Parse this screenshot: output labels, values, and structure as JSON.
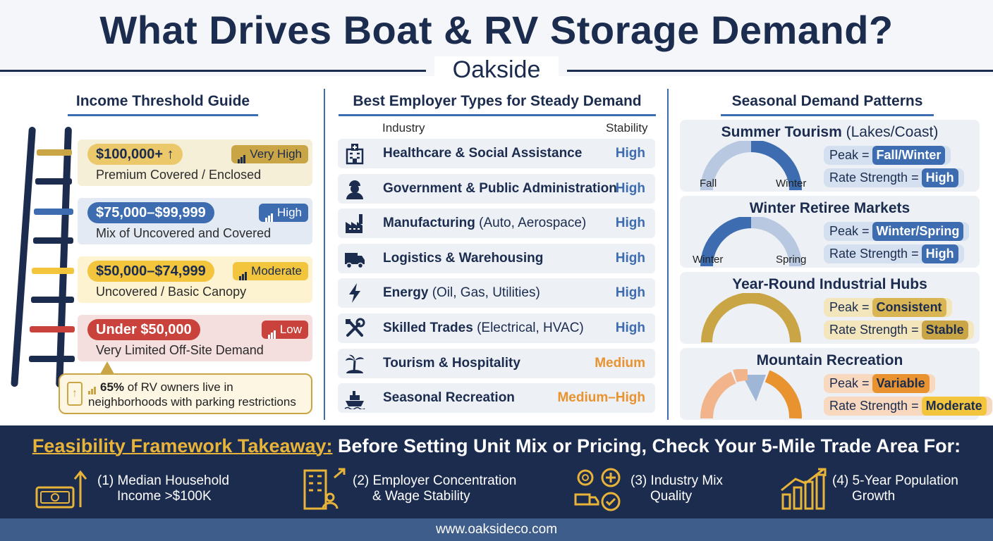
{
  "title": "What Drives Boat & RV Storage Demand?",
  "subtitle": "Oakside",
  "income": {
    "heading": "Income Threshold Guide",
    "tiers": [
      {
        "range": "$100,000+ ↑",
        "level": "Very High",
        "description": "Premium Covered / Enclosed",
        "color": "#c9a545"
      },
      {
        "range": "$75,000–$99,999",
        "level": "High",
        "description": "Mix of Uncovered and Covered",
        "color": "#3d6db0"
      },
      {
        "range": "$50,000–$74,999",
        "level": "Moderate",
        "description": "Uncovered / Basic Canopy",
        "color": "#f2c53d"
      },
      {
        "range": "Under $50,000",
        "level": "Low",
        "description": "Very Limited Off-Site Demand",
        "color": "#c9423b"
      }
    ],
    "callout_bold": "65%",
    "callout_rest": " of RV owners live in",
    "callout_line2": "neighborhoods with parking restrictions"
  },
  "employers": {
    "heading": "Best Employer Types for Steady Demand",
    "col_industry": "Industry",
    "col_stability": "Stability",
    "rows": [
      {
        "icon": "hospital-icon",
        "name": "Healthcare & Social Assistance",
        "detail": "",
        "stability": "High"
      },
      {
        "icon": "worker-icon",
        "name": "Government & Public Administration",
        "detail": "",
        "stability": "High"
      },
      {
        "icon": "factory-icon",
        "name": "Manufacturing",
        "detail": " (Auto, Aerospace)",
        "stability": "High"
      },
      {
        "icon": "truck-icon",
        "name": "Logistics & Warehousing",
        "detail": "",
        "stability": "High"
      },
      {
        "icon": "lightning-icon",
        "name": "Energy",
        "detail": " (Oil, Gas, Utilities)",
        "stability": "High"
      },
      {
        "icon": "tools-icon",
        "name": "Skilled Trades",
        "detail": " (Electrical, HVAC)",
        "stability": "High"
      },
      {
        "icon": "palm-tree-icon",
        "name": "Tourism & Hospitality",
        "detail": "",
        "stability": "Medium"
      },
      {
        "icon": "ship-icon",
        "name": "Seasonal Recreation",
        "detail": "",
        "stability": "Medium–High"
      }
    ],
    "colors": {
      "high": "#3d6db0",
      "medium": "#e8932f"
    }
  },
  "seasonal": {
    "heading": "Seasonal Demand Patterns",
    "cards": [
      {
        "title": "Summer Tourism",
        "title_extra": " (Lakes/Coast)",
        "left_label": "Fall",
        "right_label": "Winter",
        "peak": "Fall/Winter",
        "rate": "High",
        "accent": "#3d6db0"
      },
      {
        "title": "Winter Retiree Markets",
        "title_extra": "",
        "left_label": "Winter",
        "right_label": "Spring",
        "peak": "Winter/Spring",
        "rate": "High",
        "accent": "#3d6db0"
      },
      {
        "title": "Year-Round Industrial Hubs",
        "title_extra": "",
        "left_label": "",
        "right_label": "",
        "peak": "Consistent",
        "rate": "Stable",
        "accent": "#c9a545"
      },
      {
        "title": "Mountain Recreation",
        "title_extra": "",
        "left_label": "",
        "right_label": "",
        "peak": "Variable",
        "rate": "Moderate",
        "accent": "#e8932f"
      }
    ],
    "peak_label": "Peak =",
    "rate_label": "Rate Strength ="
  },
  "takeaway": {
    "title_accent": "Feasibility Framework Takeaway:",
    "title_rest": " Before Setting Unit Mix or Pricing, Check Your 5-Mile Trade Area For:",
    "steps": [
      {
        "icon": "money-growth-icon",
        "line1": "(1) Median Household",
        "line2": "Income >$100K"
      },
      {
        "icon": "employer-building-icon",
        "line1": "(2) Employer Concentration",
        "line2": "& Wage Stability"
      },
      {
        "icon": "industry-mix-icon",
        "line1": "(3) Industry Mix",
        "line2": "Quality"
      },
      {
        "icon": "growth-chart-icon",
        "line1": "(4) 5-Year Population",
        "line2": "Growth"
      }
    ]
  },
  "footer": "www.oaksideco.com"
}
